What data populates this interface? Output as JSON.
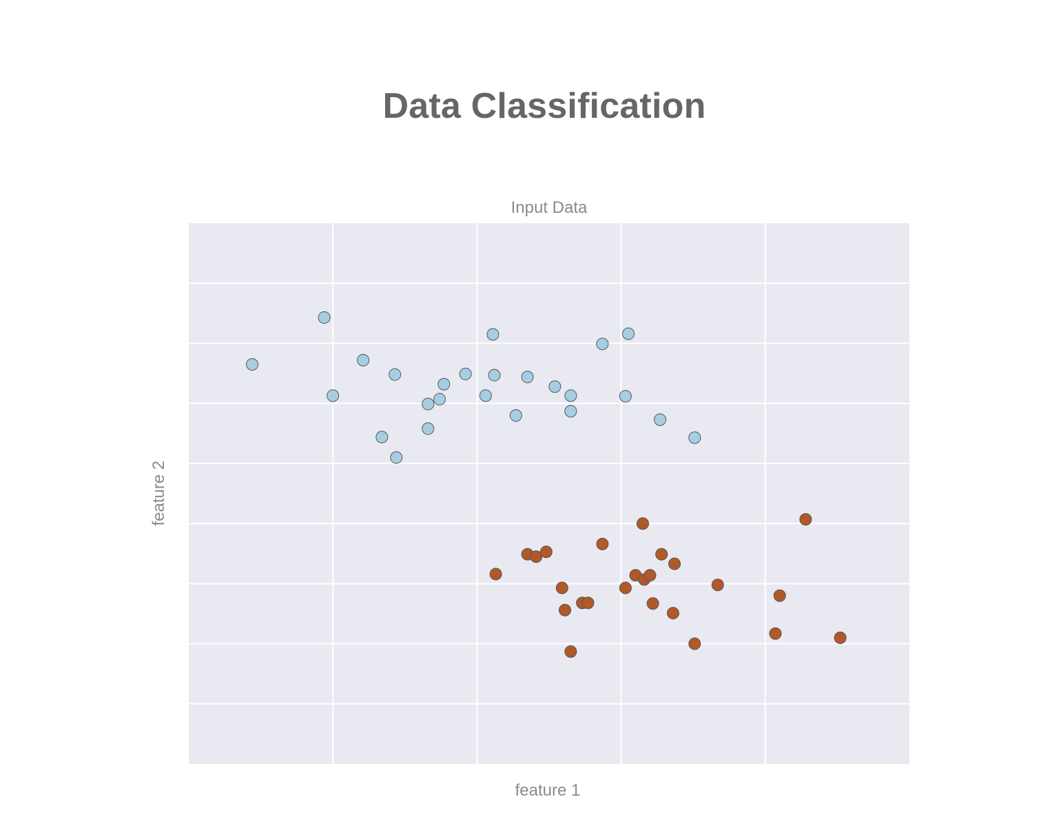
{
  "page": {
    "title": "Data Classification"
  },
  "chart_data": {
    "type": "scatter",
    "title": "Input Data",
    "xlabel": "feature 1",
    "ylabel": "feature 2",
    "xlim": [
      0,
      5
    ],
    "ylim": [
      0,
      9
    ],
    "grid": true,
    "tick_labels_visible": false,
    "colors": {
      "plot_background": "#e9e9f1",
      "grid": "#ffffff",
      "class_0": "#a6cee3",
      "class_1": "#b15928",
      "edge": "#555555"
    },
    "series": [
      {
        "points": [
          [
            0.44,
            6.65
          ],
          [
            0.94,
            7.43
          ],
          [
            1.0,
            6.13
          ],
          [
            1.21,
            6.72
          ],
          [
            1.43,
            6.48
          ],
          [
            1.34,
            5.44
          ],
          [
            1.44,
            5.1
          ],
          [
            1.66,
            5.99
          ],
          [
            1.74,
            6.07
          ],
          [
            1.66,
            5.58
          ],
          [
            1.77,
            6.32
          ],
          [
            1.92,
            6.49
          ],
          [
            2.06,
            6.13
          ],
          [
            2.11,
            7.15
          ],
          [
            2.12,
            6.47
          ],
          [
            2.27,
            5.8
          ],
          [
            2.35,
            6.44
          ],
          [
            2.54,
            6.28
          ],
          [
            2.65,
            5.87
          ],
          [
            2.65,
            6.13
          ],
          [
            2.87,
            6.99
          ],
          [
            3.05,
            7.16
          ],
          [
            3.03,
            6.12
          ],
          [
            3.27,
            5.73
          ],
          [
            3.51,
            5.43
          ]
        ]
      },
      {
        "points": [
          [
            2.13,
            3.16
          ],
          [
            2.35,
            3.49
          ],
          [
            2.41,
            3.45
          ],
          [
            2.48,
            3.53
          ],
          [
            2.59,
            2.93
          ],
          [
            2.61,
            2.56
          ],
          [
            2.65,
            1.87
          ],
          [
            2.73,
            2.68
          ],
          [
            2.77,
            2.68
          ],
          [
            2.87,
            3.66
          ],
          [
            3.03,
            2.93
          ],
          [
            3.1,
            3.14
          ],
          [
            3.16,
            3.07
          ],
          [
            3.2,
            3.14
          ],
          [
            3.22,
            2.67
          ],
          [
            3.15,
            4.0
          ],
          [
            3.28,
            3.49
          ],
          [
            3.37,
            3.33
          ],
          [
            3.36,
            2.51
          ],
          [
            3.51,
            2.0
          ],
          [
            3.67,
            2.98
          ],
          [
            4.07,
            2.17
          ],
          [
            4.1,
            2.8
          ],
          [
            4.28,
            4.07
          ],
          [
            4.52,
            2.1
          ]
        ]
      }
    ]
  }
}
